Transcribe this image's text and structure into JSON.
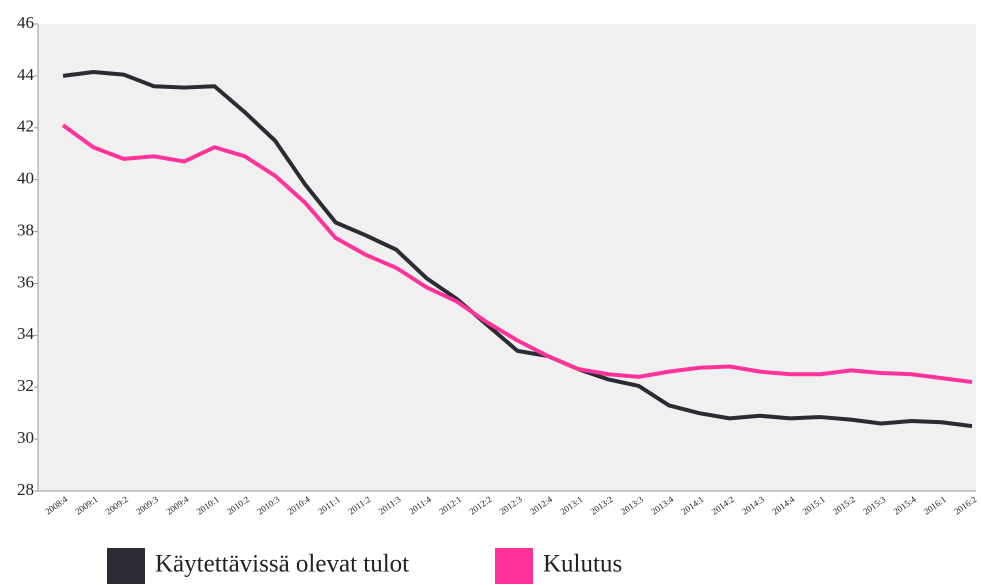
{
  "chart_data": {
    "type": "line",
    "categories": [
      "2008:4",
      "2009:1",
      "2009:2",
      "2009:3",
      "2009:4",
      "2010:1",
      "2010:2",
      "2010:3",
      "2010:4",
      "2011:1",
      "2011:2",
      "2011:3",
      "2011:4",
      "2012:1",
      "2012:2",
      "2012:3",
      "2012:4",
      "2013:1",
      "2013:2",
      "2013:3",
      "2013:4",
      "2014:1",
      "2014:2",
      "2014:3",
      "2014:4",
      "2015:1",
      "2015:2",
      "2015:3",
      "2015:4",
      "2016:1",
      "2016:2"
    ],
    "series": [
      {
        "name": "Käytettävissä olevat tulot",
        "color": "#2b2b33",
        "values": [
          44.0,
          44.15,
          44.05,
          43.6,
          43.55,
          43.6,
          42.6,
          41.5,
          39.8,
          38.35,
          37.85,
          37.3,
          36.2,
          35.4,
          34.4,
          33.4,
          33.2,
          32.7,
          32.3,
          32.05,
          31.3,
          31.0,
          30.8,
          30.9,
          30.8,
          30.85,
          30.75,
          30.6,
          30.7,
          30.65,
          30.5
        ]
      },
      {
        "name": "Kulutus",
        "color": "#ff3399",
        "values": [
          42.1,
          41.25,
          40.8,
          40.9,
          40.7,
          41.25,
          40.9,
          40.15,
          39.1,
          37.75,
          37.1,
          36.6,
          35.85,
          35.3,
          34.5,
          33.8,
          33.2,
          32.7,
          32.5,
          32.4,
          32.6,
          32.75,
          32.8,
          32.6,
          32.5,
          32.5,
          32.65,
          32.55,
          32.5,
          32.35,
          32.2
        ]
      }
    ],
    "ylim": [
      28,
      46
    ],
    "yticks": [
      28,
      30,
      32,
      34,
      36,
      38,
      40,
      42,
      44,
      46
    ]
  }
}
